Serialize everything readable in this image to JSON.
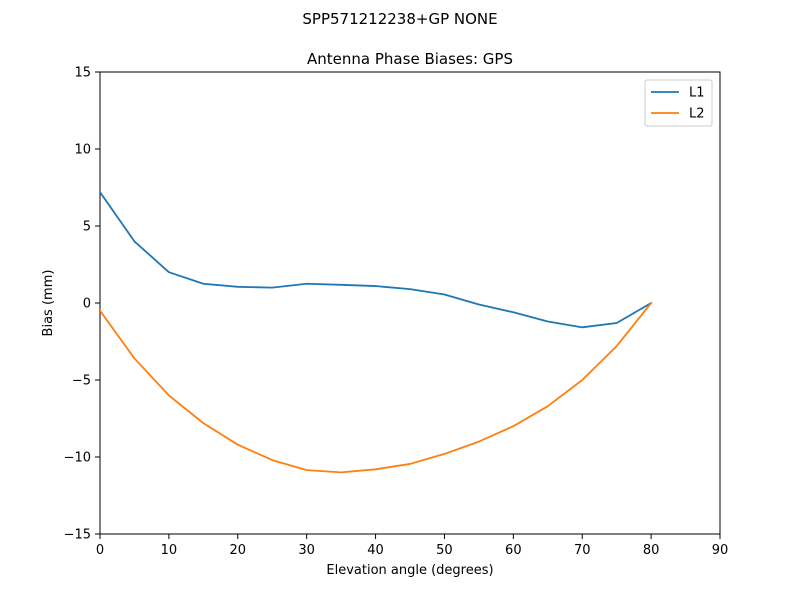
{
  "figure": {
    "suptitle": "SPP571212238+GP NONE"
  },
  "chart_data": {
    "type": "line",
    "title": "Antenna Phase Biases: GPS",
    "xlabel": "Elevation angle (degrees)",
    "ylabel": "Bias (mm)",
    "xlim": [
      0,
      90
    ],
    "ylim": [
      -15,
      15
    ],
    "xticks": [
      0,
      10,
      20,
      30,
      40,
      50,
      60,
      70,
      80,
      90
    ],
    "yticks": [
      -15,
      -10,
      -5,
      0,
      5,
      10,
      15
    ],
    "ytick_labels": [
      "−15",
      "−10",
      "−5",
      "0",
      "5",
      "10",
      "15"
    ],
    "grid": false,
    "legend_position": "top-right",
    "x": [
      0,
      5,
      10,
      15,
      20,
      25,
      30,
      35,
      40,
      45,
      50,
      55,
      60,
      65,
      70,
      75,
      80
    ],
    "series": [
      {
        "name": "L1",
        "color": "#1f77b4",
        "values": [
          7.2,
          4.0,
          2.0,
          1.25,
          1.05,
          1.0,
          1.25,
          1.18,
          1.1,
          0.9,
          0.55,
          -0.1,
          -0.6,
          -1.2,
          -1.58,
          -1.3,
          0.0
        ]
      },
      {
        "name": "L2",
        "color": "#ff7f0e",
        "values": [
          -0.5,
          -3.6,
          -6.0,
          -7.8,
          -9.2,
          -10.2,
          -10.85,
          -11.0,
          -10.8,
          -10.45,
          -9.8,
          -9.0,
          -8.0,
          -6.7,
          -5.0,
          -2.8,
          0.0
        ]
      }
    ]
  }
}
